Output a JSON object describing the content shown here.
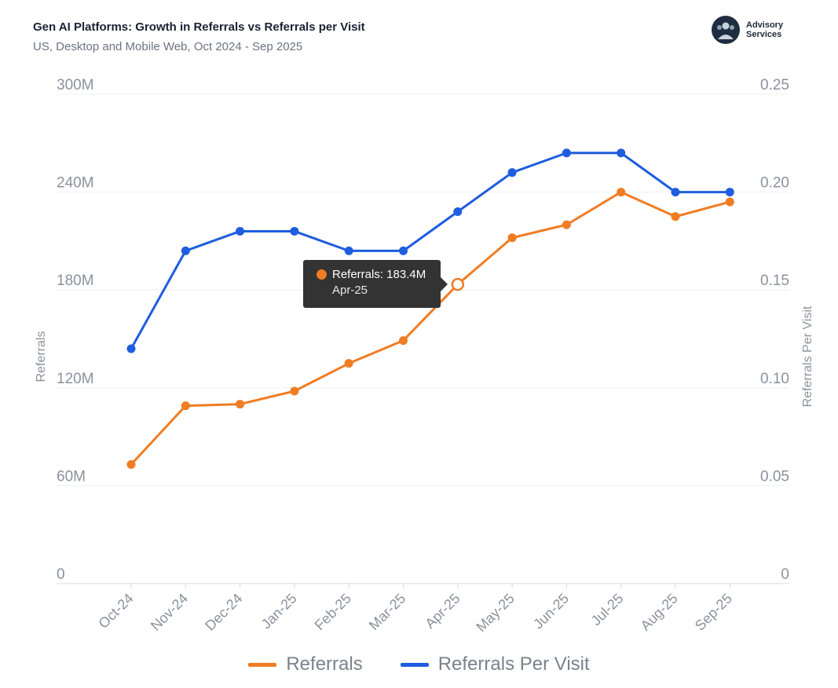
{
  "header": {
    "title": "Gen AI Platforms: Growth in Referrals vs Referrals per Visit",
    "subtitle": "US, Desktop and Mobile Web, Oct 2024 - Sep 2025",
    "logo_line1": "Advisory",
    "logo_line2": "Services"
  },
  "colors": {
    "referrals": "#f07c23",
    "per_visit": "#1f5de0"
  },
  "tooltip": {
    "label": "Referrals: 183.4M",
    "sub": "Apr-25"
  },
  "chart_data": {
    "type": "line",
    "categories": [
      "Oct-24",
      "Nov-24",
      "Dec-24",
      "Jan-25",
      "Feb-25",
      "Mar-25",
      "Apr-25",
      "May-25",
      "Jun-25",
      "Jul-25",
      "Aug-25",
      "Sep-25"
    ],
    "series": [
      {
        "name": "Referrals",
        "axis": "left",
        "values": [
          73,
          109,
          110,
          118,
          135,
          149,
          183.4,
          212,
          220,
          240,
          225,
          234
        ]
      },
      {
        "name": "Referrals Per Visit",
        "axis": "right",
        "values": [
          0.12,
          0.17,
          0.18,
          0.18,
          0.17,
          0.17,
          0.19,
          0.21,
          0.22,
          0.22,
          0.2,
          0.2
        ]
      }
    ],
    "ylabel": "Referrals",
    "y2label": "Referrals Per Visit",
    "ylim": [
      0,
      300
    ],
    "y2lim": [
      0,
      0.25
    ],
    "yticks": [
      "0",
      "60M",
      "120M",
      "180M",
      "240M",
      "300M"
    ],
    "y2ticks": [
      "0",
      "0.05",
      "0.10",
      "0.15",
      "0.20",
      "0.25"
    ],
    "legend": [
      "Referrals",
      "Referrals Per Visit"
    ],
    "legend_position": "bottom"
  }
}
